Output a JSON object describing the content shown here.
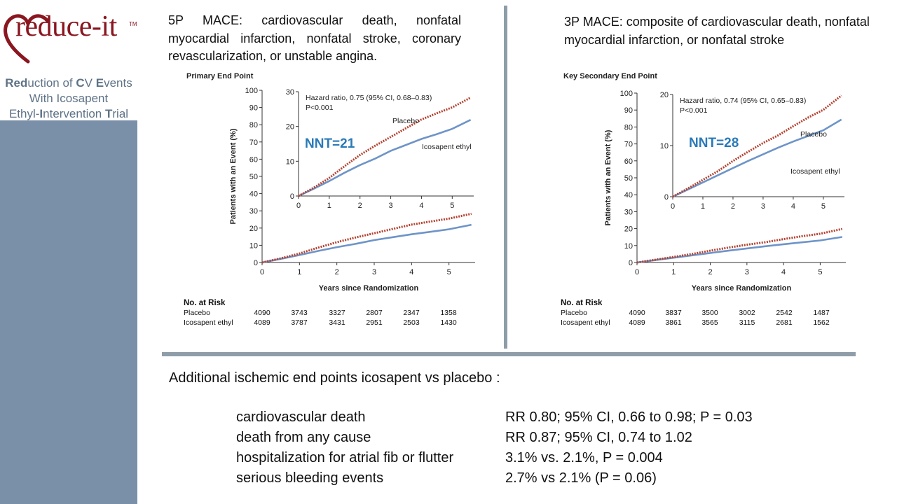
{
  "sidebar": {
    "logo_text": "reduce-it",
    "logo_tm": "TM",
    "trial_name_lines": [
      [
        "Red",
        "uction of ",
        "C",
        "V ",
        "E",
        "vents"
      ],
      [
        "With Icosapent"
      ],
      [
        "Ethyl-",
        "I",
        "ntervention ",
        "T",
        "rial"
      ]
    ],
    "colors": {
      "panel": "#7a90a8",
      "logo": "#8a1620",
      "trial_text": "#5e7286"
    }
  },
  "left_heading": "5P MACE: cardiovascular death, nonfatal myocardial infarction, nonfatal stroke, coronary revascularization, or unstable angina.",
  "right_heading": "3P MACE: composite of cardiovascular death, nonfatal myocardial infarction, or nonfatal stroke",
  "chart_data": [
    {
      "type": "line",
      "title": "Primary End Point",
      "xlabel": "Years since Randomization",
      "ylabel": "Patients with an Event (%)",
      "xlim": [
        0,
        5.7
      ],
      "ylim": [
        0,
        100
      ],
      "xticks": [
        0,
        1,
        2,
        3,
        4,
        5
      ],
      "yticks": [
        0,
        10,
        20,
        30,
        40,
        50,
        60,
        70,
        80,
        90,
        100
      ],
      "x": [
        0,
        0.5,
        1,
        1.5,
        2,
        2.5,
        3,
        3.5,
        4,
        4.5,
        5,
        5.6
      ],
      "series": [
        {
          "name": "Placebo",
          "color": "#b5412f",
          "style": "dotted",
          "values": [
            0,
            2.4,
            5.2,
            8.6,
            11.8,
            14.5,
            17.0,
            19.5,
            22.0,
            23.8,
            25.5,
            28.3
          ]
        },
        {
          "name": "Icosapent ethyl",
          "color": "#6e94c8",
          "style": "solid",
          "values": [
            0,
            2.1,
            4.3,
            6.7,
            8.9,
            10.8,
            13.0,
            14.7,
            16.4,
            17.8,
            19.3,
            21.9
          ]
        }
      ],
      "inset": {
        "xlim": [
          0,
          5.7
        ],
        "ylim": [
          0,
          30
        ],
        "xticks": [
          0,
          1,
          2,
          3,
          4,
          5
        ],
        "yticks": [
          0,
          10,
          20,
          30
        ],
        "hazard_ratio": "Hazard ratio, 0.75 (95% CI, 0.68–0.83)",
        "p_value": "P<0.001",
        "placebo_label": "Placebo",
        "icosapent_label": "Icosapent ethyl",
        "nnt": "NNT=21"
      },
      "risk_table": {
        "header": "No. at Risk",
        "rows": [
          {
            "label": "Placebo",
            "values": [
              "4090",
              "3743",
              "3327",
              "2807",
              "2347",
              "1358"
            ]
          },
          {
            "label": "Icosapent ethyl",
            "values": [
              "4089",
              "3787",
              "3431",
              "2951",
              "2503",
              "1430"
            ]
          }
        ]
      }
    },
    {
      "type": "line",
      "title": "Key Secondary End Point",
      "xlabel": "Years since Randomization",
      "ylabel": "Patients with an Event (%)",
      "xlim": [
        0,
        5.7
      ],
      "ylim": [
        0,
        100
      ],
      "xticks": [
        0,
        1,
        2,
        3,
        4,
        5
      ],
      "yticks": [
        0,
        10,
        20,
        30,
        40,
        50,
        60,
        70,
        80,
        90,
        100
      ],
      "x": [
        0,
        0.5,
        1,
        1.5,
        2,
        2.5,
        3,
        3.5,
        4,
        4.5,
        5,
        5.6
      ],
      "series": [
        {
          "name": "Placebo",
          "color": "#b5412f",
          "style": "dotted",
          "values": [
            0,
            1.6,
            3.3,
            5.0,
            7.0,
            8.8,
            10.5,
            12.0,
            13.8,
            15.5,
            17.0,
            19.8
          ]
        },
        {
          "name": "Icosapent ethyl",
          "color": "#6e94c8",
          "style": "solid",
          "values": [
            0,
            1.4,
            2.8,
            4.2,
            5.6,
            7.0,
            8.3,
            9.6,
            10.8,
            11.9,
            13.0,
            15.1
          ]
        }
      ],
      "inset": {
        "xlim": [
          0,
          5.7
        ],
        "ylim": [
          0,
          20
        ],
        "xticks": [
          0,
          1,
          2,
          3,
          4,
          5
        ],
        "yticks": [
          0,
          10,
          20
        ],
        "hazard_ratio": "Hazard ratio, 0.74 (95% CI, 0.65–0.83)",
        "p_value": "P<0.001",
        "placebo_label": "Placebo",
        "icosapent_label": "Icosapent ethyl",
        "nnt": "NNT=28"
      },
      "risk_table": {
        "header": "No. at Risk",
        "rows": [
          {
            "label": "Placebo",
            "values": [
              "4090",
              "3837",
              "3500",
              "3002",
              "2542",
              "1487"
            ]
          },
          {
            "label": "Icosapent ethyl",
            "values": [
              "4089",
              "3861",
              "3565",
              "3115",
              "2681",
              "1562"
            ]
          }
        ]
      }
    }
  ],
  "additional": {
    "title": "Additional ischemic end points icosapent vs placebo :",
    "rows": [
      {
        "name": "cardiovascular death",
        "value": "RR 0.80; 95% CI, 0.66 to 0.98; P = 0.03"
      },
      {
        "name": "death from any cause",
        "value": "RR 0.87; 95% CI, 0.74 to 1.02"
      },
      {
        "name": "hospitalization for atrial fib or flutter",
        "value": "3.1% vs. 2.1%, P = 0.004"
      },
      {
        "name": "serious bleeding events",
        "value": "2.7% vs 2.1% (P = 0.06)"
      }
    ]
  },
  "colors": {
    "nnt": "#2a7ab8",
    "divider": "#8f9da9"
  }
}
